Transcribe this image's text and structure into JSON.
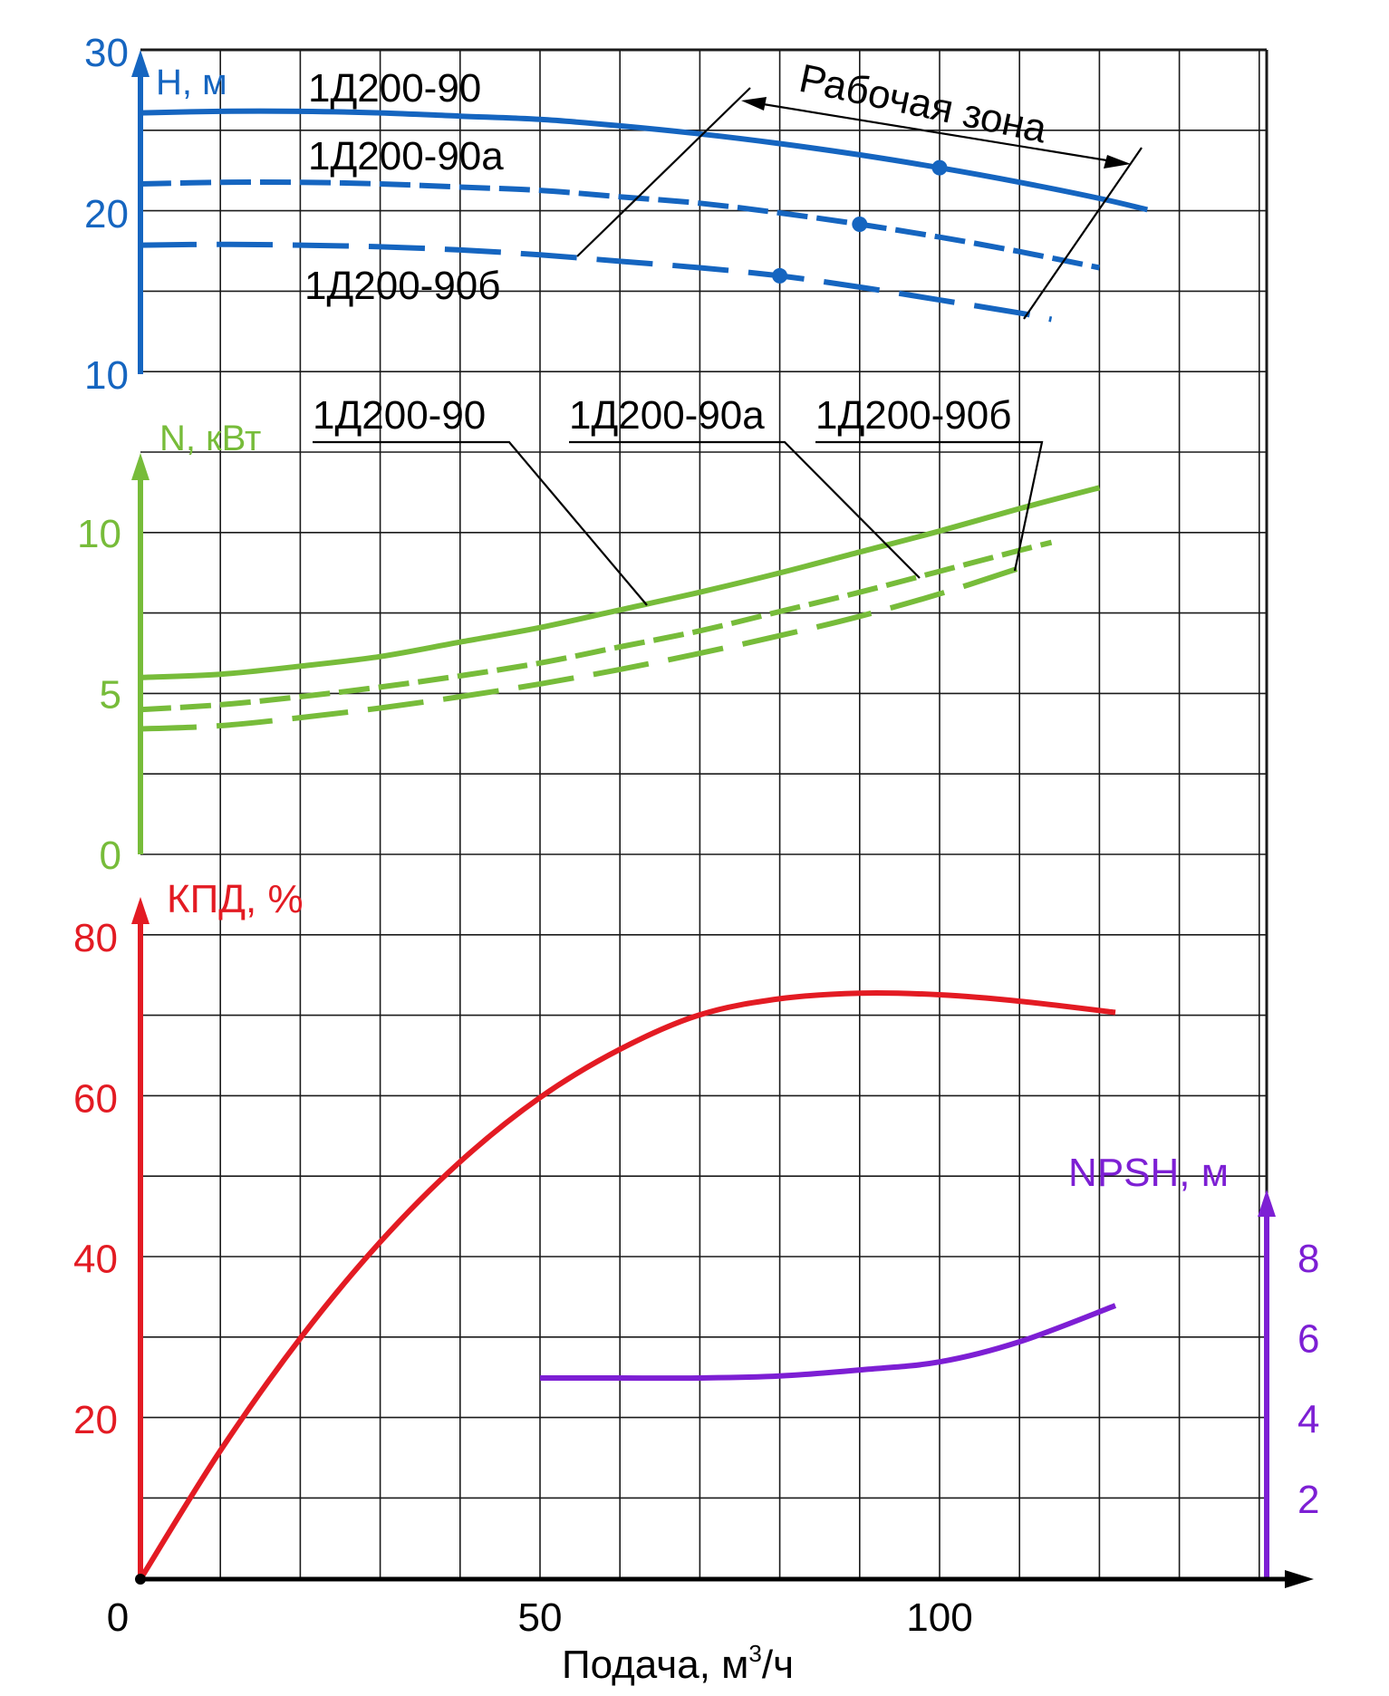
{
  "colors": {
    "head": "#1565c0",
    "power": "#77bc3a",
    "efficiency": "#e31b23",
    "npsh": "#7d1fd4",
    "axis": "#000000",
    "grid": "#1a1a1a"
  },
  "chart_data": {
    "type": "line",
    "title": "",
    "xlabel": "Подача, м",
    "xlabel_sup": "3",
    "xlabel_tail": "/ч",
    "xlim": [
      0,
      140
    ],
    "x_ticks": [
      {
        "value": 0,
        "label": "0"
      },
      {
        "value": 50,
        "label": "50"
      },
      {
        "value": 100,
        "label": "100"
      }
    ],
    "grid": true,
    "panels": {
      "head": {
        "axis_label": "H, м",
        "ylim": [
          10,
          30
        ],
        "y_ticks": [
          {
            "value": 10,
            "label": "10"
          },
          {
            "value": 20,
            "label": "20"
          },
          {
            "value": 30,
            "label": "30"
          }
        ],
        "series": [
          {
            "name": "1Д200-90",
            "style": "solid",
            "points": [
              [
                0,
                26.2
              ],
              [
                10,
                26.3
              ],
              [
                20,
                26.3
              ],
              [
                30,
                26.2
              ],
              [
                40,
                26.0
              ],
              [
                50,
                25.8
              ],
              [
                60,
                25.4
              ],
              [
                70,
                24.9
              ],
              [
                80,
                24.3
              ],
              [
                90,
                23.6
              ],
              [
                100,
                22.8
              ],
              [
                110,
                21.9
              ],
              [
                120,
                20.9
              ],
              [
                126,
                20.2
              ]
            ],
            "marker": [
              100,
              22.8
            ]
          },
          {
            "name": "1Д200-90а",
            "style": "dashed",
            "points": [
              [
                0,
                21.8
              ],
              [
                10,
                21.9
              ],
              [
                20,
                21.9
              ],
              [
                30,
                21.8
              ],
              [
                40,
                21.6
              ],
              [
                50,
                21.4
              ],
              [
                60,
                21.0
              ],
              [
                70,
                20.6
              ],
              [
                80,
                20.0
              ],
              [
                90,
                19.3
              ],
              [
                100,
                18.5
              ],
              [
                110,
                17.6
              ],
              [
                120,
                16.6
              ]
            ],
            "marker": [
              90,
              19.3
            ]
          },
          {
            "name": "1Д200-90б",
            "style": "longdash",
            "points": [
              [
                0,
                18.0
              ],
              [
                10,
                18.05
              ],
              [
                20,
                18.0
              ],
              [
                30,
                17.9
              ],
              [
                40,
                17.7
              ],
              [
                50,
                17.4
              ],
              [
                60,
                17.0
              ],
              [
                70,
                16.6
              ],
              [
                80,
                16.1
              ],
              [
                90,
                15.4
              ],
              [
                100,
                14.6
              ],
              [
                110,
                13.8
              ],
              [
                114,
                13.4
              ]
            ],
            "marker": [
              80,
              16.1
            ]
          }
        ],
        "series_labels": [
          "1Д200-90",
          "1Д200-90а",
          "1Д200-90б"
        ],
        "annotation": "Рабочая зона"
      },
      "power": {
        "axis_label": "N, кВт",
        "ylim": [
          0,
          12
        ],
        "y_ticks": [
          {
            "value": 0,
            "label": "0"
          },
          {
            "value": 5,
            "label": "5"
          },
          {
            "value": 10,
            "label": "10"
          }
        ],
        "series": [
          {
            "name": "1Д200-90",
            "style": "solid",
            "points": [
              [
                0,
                5.5
              ],
              [
                10,
                5.6
              ],
              [
                20,
                5.85
              ],
              [
                30,
                6.15
              ],
              [
                40,
                6.6
              ],
              [
                50,
                7.05
              ],
              [
                60,
                7.6
              ],
              [
                70,
                8.15
              ],
              [
                80,
                8.75
              ],
              [
                90,
                9.4
              ],
              [
                100,
                10.05
              ],
              [
                110,
                10.75
              ],
              [
                120,
                11.4
              ]
            ]
          },
          {
            "name": "1Д200-90а",
            "style": "dashed",
            "points": [
              [
                0,
                4.5
              ],
              [
                10,
                4.65
              ],
              [
                20,
                4.9
              ],
              [
                30,
                5.2
              ],
              [
                40,
                5.55
              ],
              [
                50,
                5.95
              ],
              [
                60,
                6.45
              ],
              [
                70,
                6.95
              ],
              [
                80,
                7.55
              ],
              [
                90,
                8.15
              ],
              [
                100,
                8.8
              ],
              [
                110,
                9.45
              ],
              [
                114,
                9.7
              ]
            ]
          },
          {
            "name": "1Д200-90б",
            "style": "longdash",
            "points": [
              [
                0,
                3.9
              ],
              [
                10,
                4.0
              ],
              [
                20,
                4.25
              ],
              [
                30,
                4.55
              ],
              [
                40,
                4.9
              ],
              [
                50,
                5.3
              ],
              [
                60,
                5.75
              ],
              [
                70,
                6.25
              ],
              [
                80,
                6.8
              ],
              [
                90,
                7.4
              ],
              [
                100,
                8.1
              ],
              [
                110,
                8.9
              ]
            ]
          }
        ],
        "series_labels": [
          "1Д200-90",
          "1Д200-90а",
          "1Д200-90б"
        ]
      },
      "efficiency": {
        "axis_label": "КПД, %",
        "ylim": [
          0,
          80
        ],
        "y_ticks": [
          {
            "value": 20,
            "label": "20"
          },
          {
            "value": 40,
            "label": "40"
          },
          {
            "value": 60,
            "label": "60"
          },
          {
            "value": 80,
            "label": "80"
          }
        ],
        "series": [
          {
            "name": "",
            "style": "solid",
            "points": [
              [
                0,
                0
              ],
              [
                10,
                16
              ],
              [
                20,
                30
              ],
              [
                30,
                42
              ],
              [
                40,
                52
              ],
              [
                50,
                60
              ],
              [
                60,
                66
              ],
              [
                70,
                70.3
              ],
              [
                80,
                72.3
              ],
              [
                90,
                73
              ],
              [
                100,
                72.8
              ],
              [
                110,
                72
              ],
              [
                122,
                70.6
              ]
            ]
          }
        ]
      },
      "npsh": {
        "axis_label": "NPSH, м",
        "ylim": [
          0,
          10
        ],
        "y_ticks": [
          {
            "value": 2,
            "label": "2"
          },
          {
            "value": 4,
            "label": "4"
          },
          {
            "value": 6,
            "label": "6"
          },
          {
            "value": 8,
            "label": "8"
          }
        ],
        "series": [
          {
            "name": "",
            "style": "solid",
            "points": [
              [
                50,
                5
              ],
              [
                60,
                5
              ],
              [
                70,
                5
              ],
              [
                80,
                5.05
              ],
              [
                90,
                5.2
              ],
              [
                100,
                5.4
              ],
              [
                110,
                5.9
              ],
              [
                122,
                6.8
              ]
            ]
          }
        ]
      }
    }
  }
}
